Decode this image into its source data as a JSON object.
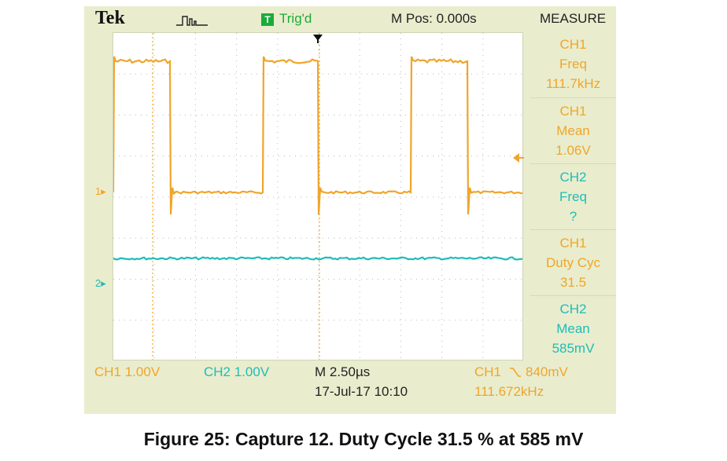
{
  "header": {
    "brand": "Tek",
    "trigger_icon": "T",
    "trigger_status": "Trig'd",
    "m_pos": "M Pos: 0.000s",
    "menu_title": "MEASURE"
  },
  "measurements": [
    {
      "source": "CH1",
      "type": "Freq",
      "value": "111.7kHz",
      "channel": "ch1"
    },
    {
      "source": "CH1",
      "type": "Mean",
      "value": "1.06V",
      "channel": "ch1"
    },
    {
      "source": "CH2",
      "type": "Freq",
      "value": "?",
      "channel": "ch2"
    },
    {
      "source": "CH1",
      "type": "Duty Cyc",
      "value": "31.5",
      "channel": "ch1"
    },
    {
      "source": "CH2",
      "type": "Mean",
      "value": "585mV",
      "channel": "ch2"
    }
  ],
  "status_bar": {
    "ch1_scale": "CH1  1.00V",
    "ch2_scale": "CH2  1.00V",
    "timebase": "M 2.50µs",
    "date_time": "17-Jul-17 10:10",
    "trigger_source": "CH1",
    "trigger_level": "840mV",
    "trigger_freq": "111.672kHz"
  },
  "channel_markers": {
    "ch1": "1",
    "ch2": "2"
  },
  "colors": {
    "ch1": "#f0a52a",
    "ch2": "#1fbcb8",
    "trigger": "#1bab3a",
    "bezel": "#e9edcd"
  },
  "icons": {
    "pulse": "pulse-icon",
    "trigger_arrow": "trigger-position-arrow",
    "trigger_level": "trigger-level-arrow",
    "slope": "falling-edge-icon"
  },
  "caption": "Figure 25: Capture 12. Duty Cycle 31.5 % at 585 mV"
}
